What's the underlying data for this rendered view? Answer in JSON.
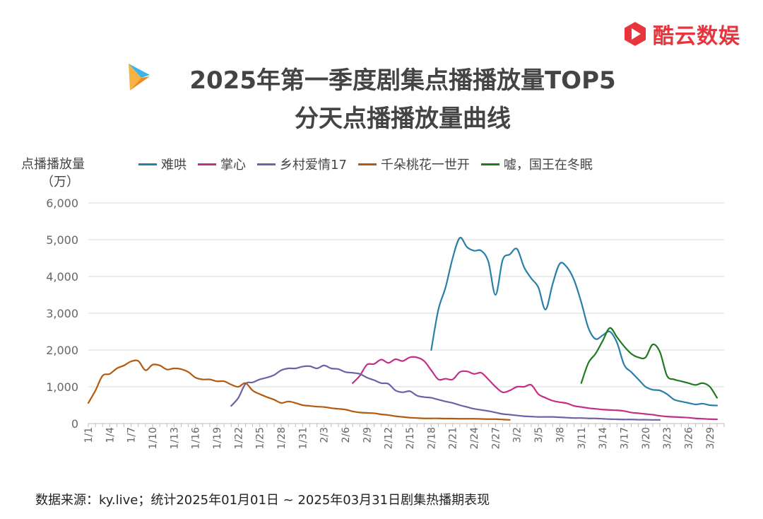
{
  "brand": {
    "name": "酷云数娱",
    "icon": "play-logo-icon",
    "color": "#e8343c"
  },
  "title_line1": "2025年第一季度剧集点播播放量TOP5",
  "title_line2": "分天点播播放量曲线",
  "ylabel_line1": "点播播放量",
  "ylabel_line2": "（万）",
  "source_note": "数据来源：ky.live；统计2025年01月01日 ~ 2025年03月31日剧集热播期表现",
  "chart_data": {
    "type": "line",
    "title": "2025年第一季度剧集点播播放量TOP5 分天点播播放量曲线",
    "xlabel": "",
    "ylabel": "点播播放量（万）",
    "ylim": [
      0,
      6000
    ],
    "yticks": [
      0,
      1000,
      2000,
      3000,
      4000,
      5000,
      6000
    ],
    "ytick_labels": [
      "0",
      "1,000",
      "2,000",
      "3,000",
      "4,000",
      "5,000",
      "6,000"
    ],
    "x_days": 90,
    "xtick_labels": [
      "1/1",
      "1/4",
      "1/7",
      "1/10",
      "1/13",
      "1/16",
      "1/19",
      "1/22",
      "1/25",
      "1/28",
      "1/31",
      "2/3",
      "2/6",
      "2/9",
      "2/12",
      "2/15",
      "2/18",
      "2/21",
      "2/24",
      "2/27",
      "3/2",
      "3/5",
      "3/8",
      "3/11",
      "3/14",
      "3/17",
      "3/20",
      "3/23",
      "3/26",
      "3/29"
    ],
    "grid": true,
    "legend_position": "top",
    "series": [
      {
        "name": "难哄",
        "color": "#2a7fa8",
        "x": [
          49,
          50,
          51,
          52,
          53,
          54,
          55,
          56,
          57,
          58,
          59,
          60,
          61,
          62,
          63,
          64,
          65,
          66,
          67,
          68,
          69,
          70,
          71,
          72,
          73,
          74,
          75,
          76,
          77,
          78,
          79,
          80,
          81,
          82,
          83,
          84,
          85,
          86,
          87,
          88,
          89
        ],
        "values": [
          2000,
          3100,
          3700,
          4500,
          5050,
          4800,
          4700,
          4700,
          4400,
          3500,
          4450,
          4600,
          4750,
          4250,
          3950,
          3700,
          3100,
          3800,
          4350,
          4250,
          3900,
          3300,
          2600,
          2300,
          2400,
          2500,
          2200,
          1600,
          1400,
          1200,
          1000,
          920,
          900,
          800,
          650,
          600,
          560,
          520,
          540,
          500,
          490
        ]
      },
      {
        "name": "掌心",
        "color": "#c42e85",
        "x": [
          38,
          39,
          40,
          41,
          42,
          43,
          44,
          45,
          46,
          47,
          48,
          49,
          50,
          51,
          52,
          53,
          54,
          55,
          56,
          57,
          58,
          59,
          60,
          61,
          62,
          63,
          64,
          65,
          66,
          67,
          68,
          69,
          70,
          71,
          72,
          73,
          74,
          75,
          76,
          77,
          78,
          79,
          80,
          81,
          82,
          83,
          84,
          85,
          86,
          87,
          88,
          89
        ],
        "values": [
          1100,
          1300,
          1600,
          1620,
          1740,
          1650,
          1750,
          1700,
          1800,
          1800,
          1700,
          1450,
          1200,
          1220,
          1200,
          1400,
          1420,
          1350,
          1380,
          1200,
          1000,
          850,
          900,
          1000,
          1000,
          1050,
          800,
          700,
          620,
          580,
          550,
          480,
          450,
          420,
          400,
          380,
          370,
          360,
          340,
          300,
          280,
          260,
          240,
          210,
          190,
          180,
          170,
          160,
          140,
          130,
          120,
          115
        ]
      },
      {
        "name": "乡村爱情17",
        "color": "#6b62a8",
        "x": [
          21,
          22,
          23,
          24,
          25,
          26,
          27,
          28,
          29,
          30,
          31,
          32,
          33,
          34,
          35,
          36,
          37,
          38,
          39,
          40,
          41,
          42,
          43,
          44,
          45,
          46,
          47,
          48,
          49,
          50,
          51,
          52,
          53,
          54,
          55,
          56,
          57,
          58,
          59,
          60,
          61,
          62,
          63,
          64,
          65,
          66,
          67,
          68,
          69,
          70,
          71,
          72,
          73,
          74,
          75,
          76,
          77,
          78,
          79,
          80,
          81
        ],
        "values": [
          480,
          700,
          1080,
          1120,
          1200,
          1250,
          1320,
          1450,
          1500,
          1500,
          1550,
          1560,
          1500,
          1580,
          1500,
          1480,
          1400,
          1380,
          1350,
          1250,
          1180,
          1100,
          1080,
          900,
          850,
          880,
          760,
          720,
          700,
          650,
          600,
          560,
          500,
          450,
          400,
          370,
          340,
          300,
          260,
          240,
          220,
          200,
          190,
          180,
          180,
          180,
          170,
          160,
          150,
          150,
          140,
          140,
          130,
          120,
          115,
          110,
          110,
          105,
          105,
          100,
          100
        ]
      },
      {
        "name": "千朵桃花一世开",
        "color": "#b35a10",
        "x": [
          1,
          2,
          3,
          4,
          5,
          6,
          7,
          8,
          9,
          10,
          11,
          12,
          13,
          14,
          15,
          16,
          17,
          18,
          19,
          20,
          21,
          22,
          23,
          24,
          25,
          26,
          27,
          28,
          29,
          30,
          31,
          32,
          33,
          34,
          35,
          36,
          37,
          38,
          39,
          40,
          41,
          42,
          43,
          44,
          45,
          46,
          47,
          48,
          49,
          50,
          51,
          52,
          53,
          54,
          55,
          56,
          57,
          58,
          59,
          60
        ],
        "values": [
          560,
          900,
          1300,
          1350,
          1500,
          1580,
          1690,
          1700,
          1450,
          1600,
          1580,
          1470,
          1500,
          1480,
          1400,
          1250,
          1200,
          1200,
          1150,
          1150,
          1060,
          1000,
          1100,
          900,
          800,
          720,
          650,
          560,
          600,
          560,
          500,
          480,
          460,
          450,
          420,
          400,
          380,
          330,
          300,
          290,
          280,
          250,
          230,
          200,
          180,
          160,
          150,
          140,
          140,
          140,
          135,
          135,
          130,
          130,
          130,
          125,
          120,
          120,
          110,
          100
        ]
      },
      {
        "name": "嘘，国王在冬眠",
        "color": "#1f7a1f",
        "x": [
          70,
          71,
          72,
          73,
          74,
          75,
          76,
          77,
          78,
          79,
          80,
          81,
          82,
          83,
          84,
          85,
          86,
          87,
          88,
          89
        ],
        "values": [
          1100,
          1650,
          1900,
          2250,
          2600,
          2350,
          2100,
          1900,
          1800,
          1800,
          2150,
          1950,
          1300,
          1200,
          1150,
          1100,
          1050,
          1100,
          1000,
          700
        ]
      }
    ]
  }
}
